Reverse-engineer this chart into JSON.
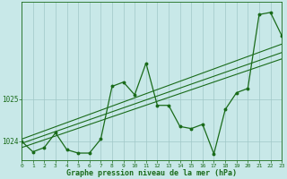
{
  "xlabel": "Graphe pression niveau de la mer (hPa)",
  "background_color": "#c8e8e8",
  "grid_color": "#a0c8c8",
  "line_color": "#1a6b1a",
  "ylim": [
    1023.55,
    1027.3
  ],
  "xlim": [
    0,
    23
  ],
  "yticks": [
    1024,
    1025
  ],
  "xticks": [
    0,
    1,
    2,
    3,
    4,
    5,
    6,
    7,
    8,
    9,
    10,
    11,
    12,
    13,
    14,
    15,
    16,
    17,
    18,
    19,
    20,
    21,
    22,
    23
  ],
  "hours": [
    0,
    1,
    2,
    3,
    4,
    5,
    6,
    7,
    8,
    9,
    10,
    11,
    12,
    13,
    14,
    15,
    16,
    17,
    18,
    19,
    20,
    21,
    22,
    23
  ],
  "pressure": [
    1024.0,
    1023.75,
    1023.85,
    1024.2,
    1023.8,
    1023.72,
    1023.72,
    1024.05,
    1025.3,
    1025.4,
    1025.1,
    1025.85,
    1024.85,
    1024.85,
    1024.35,
    1024.3,
    1024.4,
    1023.7,
    1024.75,
    1025.15,
    1025.25,
    1027.0,
    1027.05,
    1026.5
  ],
  "trend_lines": [
    [
      [
        0,
        23
      ],
      [
        1024.05,
        1026.3
      ]
    ],
    [
      [
        0,
        23
      ],
      [
        1023.95,
        1026.1
      ]
    ],
    [
      [
        0,
        23
      ],
      [
        1023.85,
        1025.95
      ]
    ]
  ]
}
